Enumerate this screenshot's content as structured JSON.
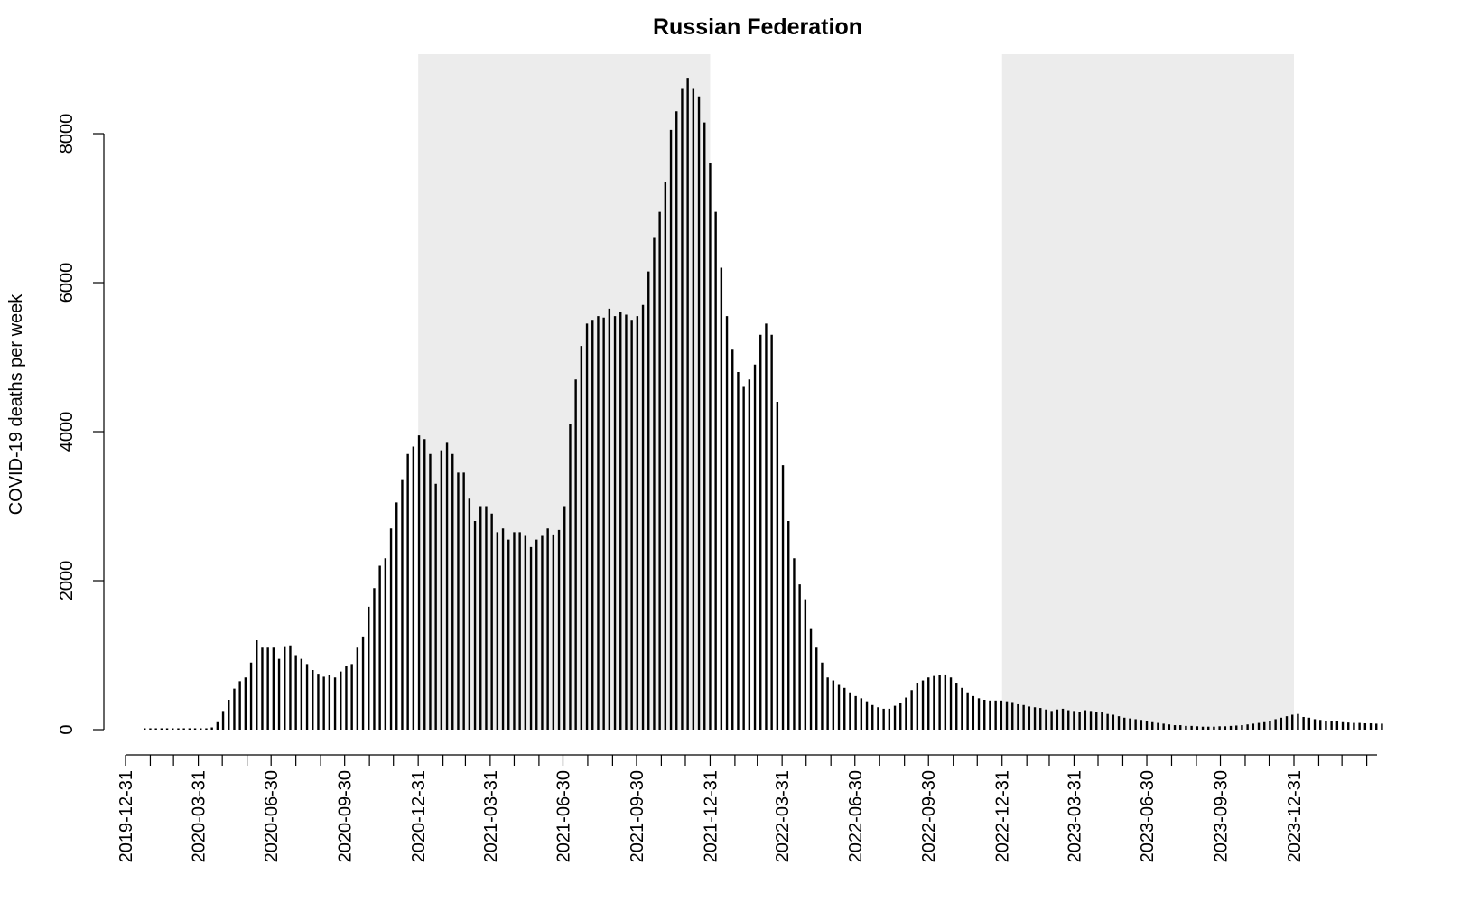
{
  "chart_data": {
    "type": "bar",
    "title": "Russian Federation",
    "xlabel": "",
    "ylabel": "COVID-19 deaths per week",
    "ylim": [
      0,
      9000
    ],
    "y_ticks": [
      0,
      2000,
      4000,
      6000,
      8000
    ],
    "x_tick_labels": [
      "2019-12-31",
      "2020-03-31",
      "2020-06-30",
      "2020-09-30",
      "2020-12-31",
      "2021-03-31",
      "2021-06-30",
      "2021-09-30",
      "2021-12-31",
      "2022-03-31",
      "2022-06-30",
      "2022-09-30",
      "2022-12-31",
      "2023-03-31",
      "2023-06-30",
      "2023-09-30",
      "2023-12-31"
    ],
    "shaded_periods": [
      {
        "start": "2020-12-31",
        "end": "2021-12-31"
      },
      {
        "start": "2022-12-31",
        "end": "2023-12-31"
      }
    ],
    "shade_color": "#ececec",
    "bar_color": "#000000",
    "grid": false,
    "series": [
      {
        "start_date": "2020-01-24",
        "interval_days": 7,
        "values": [
          0,
          0,
          0,
          0,
          0,
          0,
          0,
          0,
          0,
          0,
          5,
          10,
          30,
          100,
          250,
          400,
          550,
          650,
          700,
          900,
          1200,
          1100,
          1100,
          1100,
          950,
          1120,
          1130,
          1000,
          950,
          880,
          800,
          750,
          710,
          730,
          700,
          780,
          850,
          880,
          1100,
          1250,
          1650,
          1900,
          2200,
          2300,
          2700,
          3050,
          3350,
          3700,
          3800,
          3950,
          3900,
          3700,
          3300,
          3750,
          3850,
          3700,
          3450,
          3450,
          3100,
          2800,
          3000,
          3000,
          2900,
          2650,
          2700,
          2550,
          2650,
          2650,
          2600,
          2450,
          2550,
          2600,
          2700,
          2620,
          2680,
          3000,
          4100,
          4700,
          5150,
          5450,
          5500,
          5550,
          5530,
          5650,
          5550,
          5600,
          5570,
          5500,
          5550,
          5700,
          6150,
          6600,
          6950,
          7350,
          8050,
          8300,
          8600,
          8750,
          8600,
          8500,
          8150,
          7600,
          6950,
          6200,
          5550,
          5100,
          4800,
          4600,
          4700,
          4900,
          5300,
          5450,
          5300,
          4400,
          3550,
          2800,
          2300,
          1950,
          1750,
          1350,
          1100,
          900,
          700,
          660,
          600,
          560,
          500,
          450,
          420,
          380,
          330,
          300,
          280,
          280,
          320,
          360,
          430,
          530,
          630,
          660,
          700,
          720,
          730,
          740,
          700,
          630,
          560,
          500,
          450,
          420,
          400,
          390,
          390,
          390,
          380,
          370,
          340,
          330,
          310,
          300,
          290,
          270,
          250,
          270,
          280,
          260,
          250,
          240,
          260,
          250,
          240,
          230,
          210,
          200,
          180,
          160,
          150,
          140,
          130,
          120,
          100,
          90,
          80,
          70,
          60,
          60,
          50,
          50,
          45,
          40,
          40,
          40,
          45,
          45,
          50,
          55,
          60,
          70,
          80,
          90,
          100,
          120,
          140,
          160,
          180,
          200,
          210,
          170,
          160,
          140,
          130,
          120,
          120,
          110,
          100,
          95,
          90,
          90,
          85,
          85,
          80,
          80
        ]
      }
    ]
  }
}
